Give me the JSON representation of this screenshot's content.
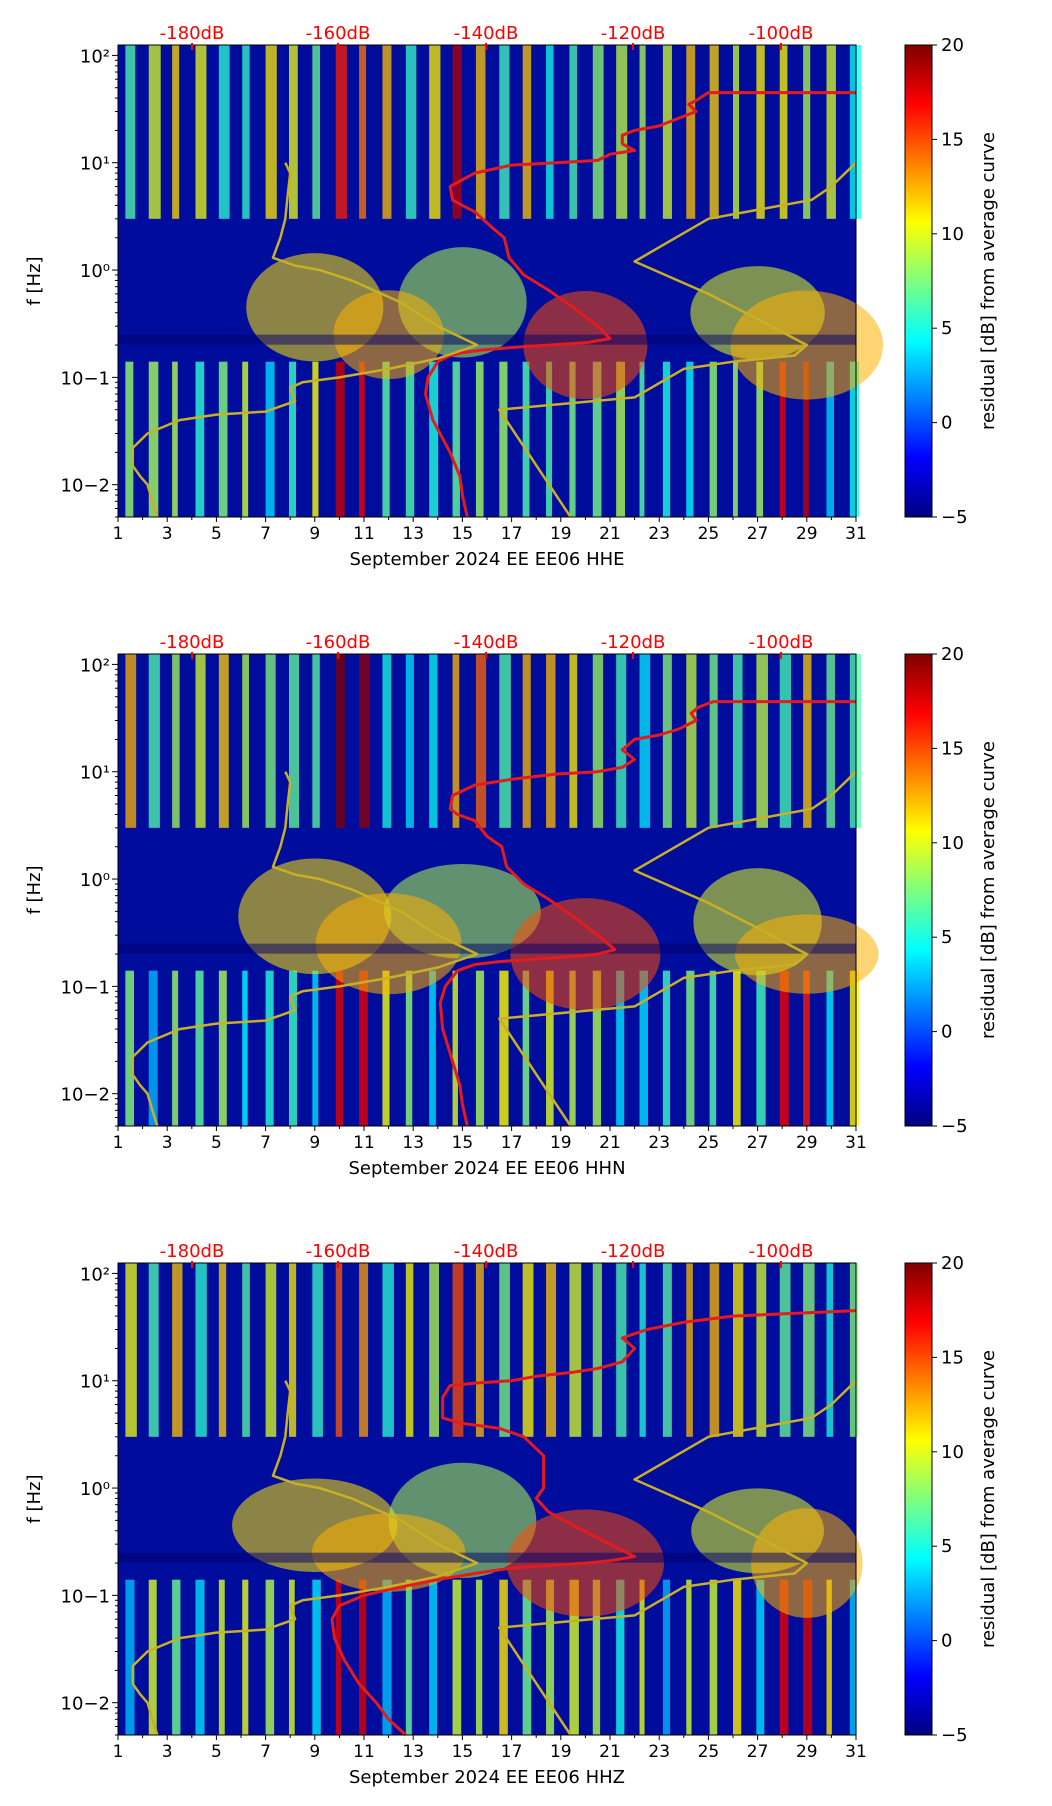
{
  "chart_data": [
    {
      "type": "heatmap",
      "xlabel": "September 2024 EE EE06  HHE",
      "ylabel": "f [Hz]",
      "x_ticks": [
        "1",
        "3",
        "5",
        "7",
        "9",
        "11",
        "13",
        "15",
        "17",
        "19",
        "21",
        "23",
        "25",
        "27",
        "29",
        "31"
      ],
      "y_ticks": [
        "10−2",
        "10−1",
        "10⁰",
        "10¹",
        "10²"
      ],
      "x_range": [
        1,
        31
      ],
      "y_range_hz": [
        0.005,
        125
      ],
      "top_db_labels": [
        "-180dB",
        "-160dB",
        "-140dB",
        "-120dB",
        "-100dB"
      ],
      "colorbar": {
        "label": "residual [dB] from average curve",
        "min": -5,
        "max": 20,
        "ticks": [
          "20",
          "15",
          "10",
          "5",
          "0",
          "−5"
        ]
      },
      "series": [
        {
          "name": "average curve (red)",
          "color": "#e41a1c",
          "x": [
            15.2,
            15.0,
            14.9,
            14.5,
            13.8,
            13.5,
            13.6,
            14.0,
            14.5,
            15.0,
            15.8,
            17.0,
            18.5,
            20.0,
            21.0,
            20.5,
            19.5,
            18.5,
            17.5,
            16.9,
            16.7,
            16.2,
            15.5,
            15.0,
            14.6,
            14.5,
            15.5,
            17.0,
            18.8,
            20.5,
            21.0,
            22.0,
            21.5,
            21.5,
            22.0,
            23.0,
            23.6,
            24.5,
            24.2,
            24.5,
            25.0,
            31.0
          ],
          "y_hz": [
            0.005,
            0.008,
            0.012,
            0.02,
            0.04,
            0.07,
            0.1,
            0.14,
            0.16,
            0.17,
            0.18,
            0.19,
            0.2,
            0.21,
            0.23,
            0.3,
            0.45,
            0.65,
            0.9,
            1.3,
            2.0,
            2.5,
            3.5,
            4.0,
            4.5,
            6.0,
            8.0,
            9.5,
            10.0,
            10.5,
            12.0,
            13.0,
            15.0,
            18.0,
            20.0,
            22.0,
            25.0,
            30.0,
            35.0,
            38.0,
            45.0,
            45.0
          ]
        },
        {
          "name": "reference model (gold)",
          "color": "#c8b026",
          "x": [
            2.6,
            2.4,
            2.2,
            1.9,
            1.6,
            1.6,
            2.2,
            3.5,
            5.0,
            7.0,
            8.2,
            8.0,
            8.5,
            10.0,
            12.0,
            14.0,
            15.6,
            14.0,
            12.5,
            10.5,
            9.2,
            8.2,
            7.3,
            7.6,
            7.8,
            7.9,
            8.0,
            7.8
          ],
          "y_hz": [
            0.005,
            0.007,
            0.01,
            0.012,
            0.015,
            0.022,
            0.03,
            0.04,
            0.045,
            0.048,
            0.06,
            0.08,
            0.09,
            0.1,
            0.12,
            0.15,
            0.2,
            0.3,
            0.5,
            0.8,
            1.0,
            1.1,
            1.3,
            2.0,
            3.0,
            5.0,
            8.0,
            10.0
          ]
        },
        {
          "name": "reference model 2 (gold)",
          "color": "#c8b026",
          "x": [
            19.4,
            16.5,
            22.0,
            24.0,
            26.0,
            28.5,
            29.0,
            27.0,
            25.0,
            22.0,
            25.0,
            29.2,
            30.0,
            31.0
          ],
          "y_hz": [
            0.005,
            0.05,
            0.065,
            0.12,
            0.14,
            0.16,
            0.2,
            0.35,
            0.6,
            1.2,
            3.0,
            4.5,
            6.0,
            10.0
          ]
        }
      ]
    },
    {
      "type": "heatmap",
      "xlabel": "September 2024 EE EE06  HHN",
      "ylabel": "f [Hz]",
      "x_ticks": [
        "1",
        "3",
        "5",
        "7",
        "9",
        "11",
        "13",
        "15",
        "17",
        "19",
        "21",
        "23",
        "25",
        "27",
        "29",
        "31"
      ],
      "y_ticks": [
        "10−2",
        "10−1",
        "10⁰",
        "10¹",
        "10²"
      ],
      "x_range": [
        1,
        31
      ],
      "y_range_hz": [
        0.005,
        125
      ],
      "top_db_labels": [
        "-180dB",
        "-160dB",
        "-140dB",
        "-120dB",
        "-100dB"
      ],
      "colorbar": {
        "label": "residual [dB] from average curve",
        "min": -5,
        "max": 20,
        "ticks": [
          "20",
          "15",
          "10",
          "5",
          "0",
          "−5"
        ]
      },
      "series": [
        {
          "name": "average curve (red)",
          "color": "#e41a1c",
          "x": [
            15.2,
            15.0,
            14.9,
            14.6,
            14.2,
            14.1,
            14.3,
            14.8,
            15.5,
            16.5,
            18.0,
            19.5,
            20.5,
            21.2,
            20.5,
            19.5,
            18.5,
            17.5,
            16.8,
            16.6,
            16.0,
            15.5,
            14.8,
            14.5,
            14.6,
            15.5,
            17.0,
            18.8,
            20.5,
            21.5,
            22.0,
            21.5,
            22.0,
            23.0,
            23.8,
            24.5,
            24.3,
            24.6,
            25.2,
            31.0
          ],
          "y_hz": [
            0.005,
            0.008,
            0.012,
            0.02,
            0.04,
            0.07,
            0.1,
            0.14,
            0.16,
            0.17,
            0.18,
            0.19,
            0.2,
            0.22,
            0.3,
            0.45,
            0.65,
            0.9,
            1.3,
            2.0,
            2.5,
            3.5,
            4.0,
            4.5,
            6.0,
            7.5,
            8.5,
            9.5,
            10.0,
            11.0,
            13.0,
            16.0,
            20.0,
            22.0,
            25.0,
            30.0,
            35.0,
            40.0,
            45.0,
            45.0
          ]
        },
        {
          "name": "reference model (gold)",
          "color": "#c8b026",
          "x": [
            2.6,
            2.4,
            2.2,
            1.9,
            1.6,
            1.6,
            2.2,
            3.5,
            5.0,
            7.0,
            8.2,
            8.0,
            8.5,
            10.0,
            12.0,
            14.0,
            15.6,
            14.0,
            12.5,
            10.5,
            9.2,
            8.2,
            7.3,
            7.6,
            7.8,
            7.9,
            8.0,
            7.8
          ],
          "y_hz": [
            0.005,
            0.007,
            0.01,
            0.012,
            0.015,
            0.022,
            0.03,
            0.04,
            0.045,
            0.048,
            0.06,
            0.08,
            0.09,
            0.1,
            0.12,
            0.15,
            0.2,
            0.3,
            0.5,
            0.8,
            1.0,
            1.1,
            1.3,
            2.0,
            3.0,
            5.0,
            8.0,
            10.0
          ]
        },
        {
          "name": "reference model 2 (gold)",
          "color": "#c8b026",
          "x": [
            19.4,
            16.5,
            22.0,
            24.0,
            26.0,
            28.5,
            29.0,
            27.0,
            25.0,
            22.0,
            25.0,
            29.2,
            30.0,
            31.0
          ],
          "y_hz": [
            0.005,
            0.05,
            0.065,
            0.12,
            0.14,
            0.16,
            0.2,
            0.35,
            0.6,
            1.2,
            3.0,
            4.5,
            6.0,
            10.0
          ]
        }
      ]
    },
    {
      "type": "heatmap",
      "xlabel": "September 2024 EE EE06  HHZ",
      "ylabel": "f [Hz]",
      "x_ticks": [
        "1",
        "3",
        "5",
        "7",
        "9",
        "11",
        "13",
        "15",
        "17",
        "19",
        "21",
        "23",
        "25",
        "27",
        "29",
        "31"
      ],
      "y_ticks": [
        "10−2",
        "10−1",
        "10⁰",
        "10¹",
        "10²"
      ],
      "x_range": [
        1,
        31
      ],
      "y_range_hz": [
        0.005,
        125
      ],
      "top_db_labels": [
        "-180dB",
        "-160dB",
        "-140dB",
        "-120dB",
        "-100dB"
      ],
      "colorbar": {
        "label": "residual [dB] from average curve",
        "min": -5,
        "max": 20,
        "ticks": [
          "20",
          "15",
          "10",
          "5",
          "0",
          "−5"
        ]
      },
      "series": [
        {
          "name": "average curve (red)",
          "color": "#e41a1c",
          "x": [
            12.7,
            12.0,
            11.5,
            10.8,
            10.2,
            9.8,
            9.7,
            10.0,
            11.0,
            12.5,
            14.0,
            15.5,
            17.0,
            18.5,
            20.0,
            21.0,
            22.0,
            21.0,
            19.5,
            18.5,
            18.0,
            18.3,
            18.3,
            17.5,
            16.5,
            15.0,
            14.2,
            14.2,
            14.5,
            15.5,
            17.0,
            18.0,
            19.5,
            20.5,
            21.5,
            22.0,
            21.5,
            22.5,
            24.0,
            26.0,
            31.0
          ],
          "y_hz": [
            0.005,
            0.007,
            0.01,
            0.015,
            0.025,
            0.04,
            0.06,
            0.08,
            0.1,
            0.12,
            0.14,
            0.16,
            0.18,
            0.19,
            0.2,
            0.21,
            0.23,
            0.3,
            0.45,
            0.6,
            0.8,
            1.0,
            2.0,
            3.0,
            3.6,
            4.0,
            4.5,
            7.0,
            9.0,
            9.5,
            10.0,
            11.0,
            12.0,
            13.0,
            15.0,
            20.0,
            25.0,
            30.0,
            35.0,
            40.0,
            45.0
          ]
        },
        {
          "name": "reference model (gold)",
          "color": "#c8b026",
          "x": [
            2.6,
            2.4,
            2.2,
            1.9,
            1.6,
            1.6,
            2.2,
            3.5,
            5.0,
            7.0,
            8.2,
            8.0,
            8.5,
            10.0,
            12.0,
            14.0,
            15.6,
            14.0,
            12.5,
            10.5,
            9.2,
            8.2,
            7.3,
            7.6,
            7.8,
            7.9,
            8.0,
            7.8
          ],
          "y_hz": [
            0.005,
            0.007,
            0.01,
            0.012,
            0.015,
            0.022,
            0.03,
            0.04,
            0.045,
            0.048,
            0.06,
            0.08,
            0.09,
            0.1,
            0.12,
            0.15,
            0.2,
            0.3,
            0.5,
            0.8,
            1.0,
            1.1,
            1.3,
            2.0,
            3.0,
            5.0,
            8.0,
            10.0
          ]
        },
        {
          "name": "reference model 2 (gold)",
          "color": "#c8b026",
          "x": [
            19.4,
            16.5,
            22.0,
            24.0,
            26.0,
            28.5,
            29.0,
            27.0,
            25.0,
            22.0,
            25.0,
            29.2,
            30.0,
            31.0
          ],
          "y_hz": [
            0.005,
            0.05,
            0.065,
            0.12,
            0.14,
            0.16,
            0.2,
            0.35,
            0.6,
            1.2,
            3.0,
            4.5,
            6.0,
            10.0
          ]
        }
      ]
    }
  ]
}
